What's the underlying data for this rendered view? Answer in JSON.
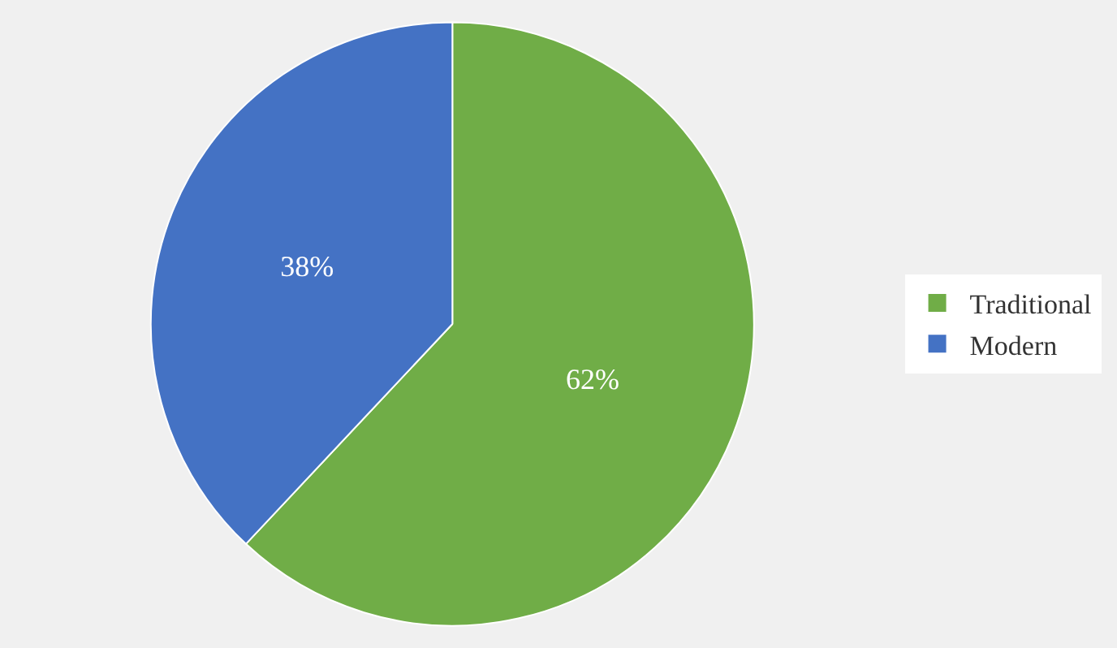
{
  "chart_data": {
    "type": "pie",
    "categories": [
      "Traditional",
      "Modern"
    ],
    "values": [
      62,
      38
    ],
    "colors": [
      "#70ad47",
      "#4472c4"
    ],
    "value_labels": [
      "62%",
      "38%"
    ],
    "legend": "right"
  }
}
